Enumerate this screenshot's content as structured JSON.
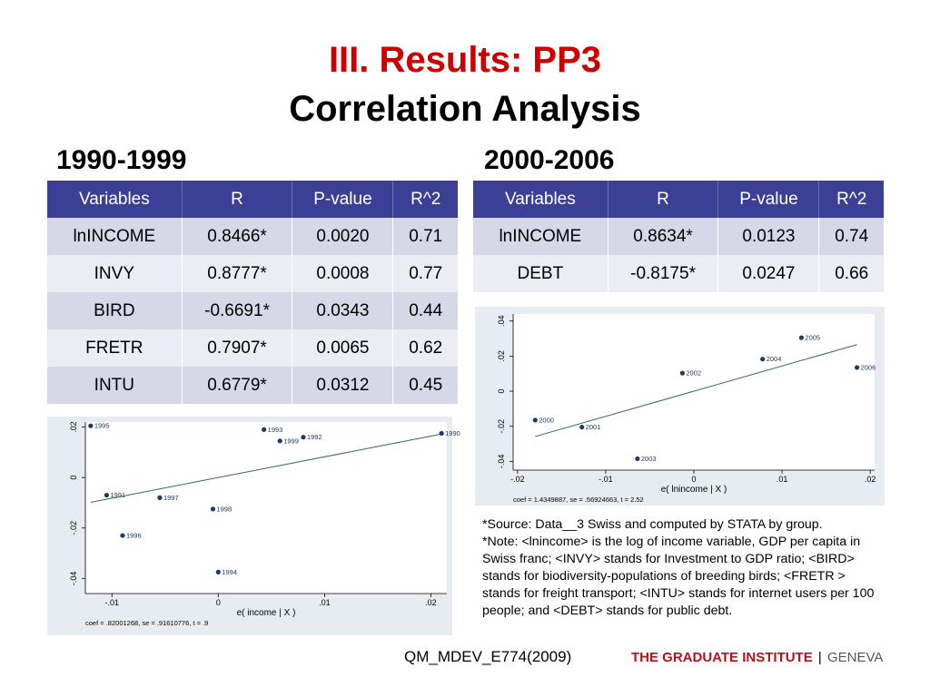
{
  "title": {
    "line1": "III. Results: PP3",
    "line2": "Correlation Analysis"
  },
  "periods": {
    "left": "1990-1999",
    "right": "2000-2006"
  },
  "headers": [
    "Variables",
    "R",
    "P-value",
    "R^2"
  ],
  "table_left": [
    [
      "lnINCOME",
      "0.8466*",
      "0.0020",
      "0.71"
    ],
    [
      "INVY",
      "0.8777*",
      "0.0008",
      "0.77"
    ],
    [
      "BIRD",
      "-0.6691*",
      "0.0343",
      "0.44"
    ],
    [
      "FRETR",
      "0.7907*",
      "0.0065",
      "0.62"
    ],
    [
      "INTU",
      "0.6779*",
      "0.0312",
      "0.45"
    ]
  ],
  "table_right": [
    [
      "lnINCOME",
      "0.8634*",
      "0.0123",
      "0.74"
    ],
    [
      "DEBT",
      "-0.8175*",
      "0.0247",
      "0.66"
    ]
  ],
  "colors": {
    "title_red": "#cc0000",
    "header_blue": "#3b3f95",
    "row_light": "#d6d8e8",
    "row_lighter": "#ebecf4",
    "plot_bg": "#e7ecf2",
    "point_navy": "#1b3a66",
    "fit_line": "#2e6b4f",
    "brand_red": "#b5121b"
  },
  "notes": {
    "source": "*Source: Data__3 Swiss and computed by STATA by group.",
    "note": "*Note: <lnincome> is the log of income variable, GDP per capita in Swiss franc; <INVY> stands for Investment to GDP ratio; <BIRD> stands for biodiversity-populations of breeding birds; <FRETR > stands for freight transport; <INTU> stands for internet users per 100 people; and <DEBT> stands for public debt."
  },
  "footer": {
    "code": "QM_MDEV_E774(2009)",
    "brand_main": "THE GRADUATE INSTITUTE",
    "brand_sep": "|",
    "brand_city": "GENEVA"
  },
  "chart_data": [
    {
      "type": "scatter",
      "xlabel": "e( income | X )",
      "ylabel": "",
      "xlim": [
        -0.0125,
        0.0215
      ],
      "ylim": [
        -0.046,
        0.022
      ],
      "xticks": [
        -0.01,
        0,
        0.01,
        0.02
      ],
      "xtick_labels": [
        "-.01",
        "0",
        ".01",
        ".02"
      ],
      "yticks": [
        -0.04,
        -0.02,
        0,
        0.02
      ],
      "ytick_labels": [
        "-.04",
        "-.02",
        "0",
        ".02"
      ],
      "fit": {
        "slope": 0.82001268,
        "intercept": 0
      },
      "note": "coef = .82001268, se = .91610776, t = .9",
      "points": [
        {
          "label": "1995",
          "x": -0.012,
          "y": 0.0205
        },
        {
          "label": "1993",
          "x": 0.0043,
          "y": 0.019
        },
        {
          "label": "1992",
          "x": 0.008,
          "y": 0.016
        },
        {
          "label": "1999",
          "x": 0.0058,
          "y": 0.0145
        },
        {
          "label": "1990",
          "x": 0.021,
          "y": 0.0175
        },
        {
          "label": "1991",
          "x": -0.0105,
          "y": -0.007
        },
        {
          "label": "1997",
          "x": -0.0055,
          "y": -0.008
        },
        {
          "label": "1998",
          "x": -0.0005,
          "y": -0.0125
        },
        {
          "label": "1996",
          "x": -0.009,
          "y": -0.023
        },
        {
          "label": "1994",
          "x": 0,
          "y": -0.0375
        }
      ]
    },
    {
      "type": "scatter",
      "xlabel": "e( lnincome | X )",
      "ylabel": "",
      "xlim": [
        -0.0205,
        0.0205
      ],
      "ylim": [
        -0.045,
        0.044
      ],
      "xticks": [
        -0.02,
        -0.01,
        0,
        0.01,
        0.02
      ],
      "xtick_labels": [
        "-.02",
        "-.01",
        "0",
        ".01",
        ".02"
      ],
      "yticks": [
        -0.04,
        -0.02,
        0,
        0.02,
        0.04
      ],
      "ytick_labels": [
        "-.04",
        "-.02",
        "0",
        ".02",
        ".04"
      ],
      "fit": {
        "slope": 1.4349887,
        "intercept": 0
      },
      "note": "coef = 1.4349887, se = .56924663, t = 2.52",
      "points": [
        {
          "label": "2000",
          "x": -0.018,
          "y": -0.0165
        },
        {
          "label": "2001",
          "x": -0.0127,
          "y": -0.0205
        },
        {
          "label": "2002",
          "x": -0.0013,
          "y": 0.0103
        },
        {
          "label": "2003",
          "x": -0.0064,
          "y": -0.0385
        },
        {
          "label": "2004",
          "x": 0.0078,
          "y": 0.0183
        },
        {
          "label": "2005",
          "x": 0.0122,
          "y": 0.0305
        },
        {
          "label": "2006",
          "x": 0.0185,
          "y": 0.0135
        }
      ]
    }
  ]
}
